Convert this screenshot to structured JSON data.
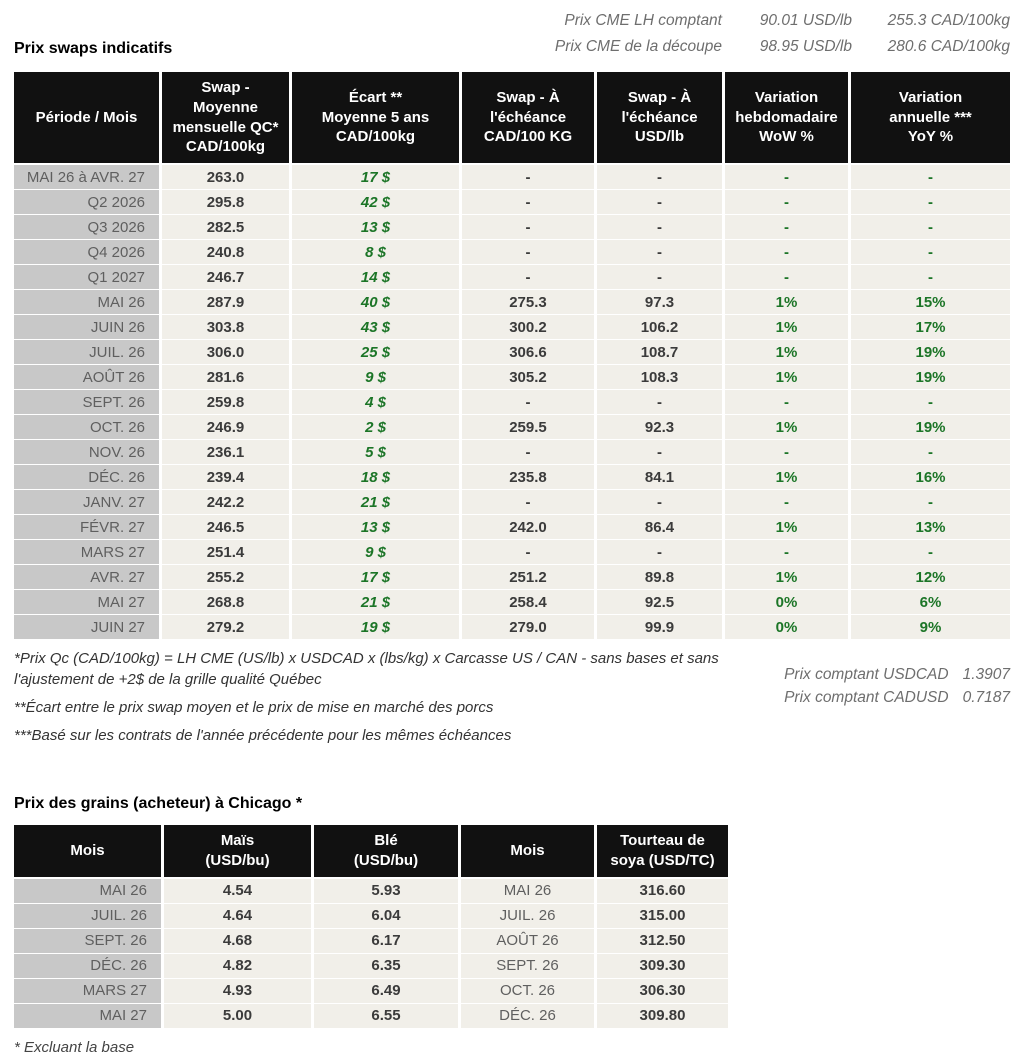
{
  "colors": {
    "green": "#1c7527",
    "header_bg": "#111111",
    "row_bg": "#f1efe9",
    "period_bg": "#c8c8c8",
    "period_text": "#5f5f5f",
    "value_text": "#3b3b3b",
    "muted_text": "#6e6e6e"
  },
  "topbar": {
    "title": "Prix swaps indicatifs",
    "spot_lines": [
      {
        "label": "Prix CME LH comptant",
        "usd": "90.01 USD/lb",
        "cad": "255.3 CAD/100kg"
      },
      {
        "label": "Prix CME de la découpe",
        "usd": "98.95 USD/lb",
        "cad": "280.6 CAD/100kg"
      }
    ]
  },
  "swaps_table": {
    "columns": [
      "Période / Mois",
      "Swap -\nMoyenne\nmensuelle QC*\nCAD/100kg",
      "Écart **\nMoyenne 5 ans\nCAD/100kg",
      "Swap - À\nl'échéance\nCAD/100 KG",
      "Swap - À\nl'échéance\nUSD/lb",
      "Variation\nhebdomadaire\nWoW %",
      "Variation\nannuelle ***\nYoY %"
    ],
    "rows": [
      [
        "MAI 26 à  AVR. 27",
        "263.0",
        "17 $",
        "-",
        "-",
        "-",
        "-"
      ],
      [
        "Q2 2026",
        "295.8",
        "42 $",
        "-",
        "-",
        "-",
        "-"
      ],
      [
        "Q3 2026",
        "282.5",
        "13 $",
        "-",
        "-",
        "-",
        "-"
      ],
      [
        "Q4 2026",
        "240.8",
        "8 $",
        "-",
        "-",
        "-",
        "-"
      ],
      [
        "Q1 2027",
        "246.7",
        "14 $",
        "-",
        "-",
        "-",
        "-"
      ],
      [
        "MAI 26",
        "287.9",
        "40 $",
        "275.3",
        "97.3",
        "1%",
        "15%"
      ],
      [
        "JUIN 26",
        "303.8",
        "43 $",
        "300.2",
        "106.2",
        "1%",
        "17%"
      ],
      [
        "JUIL. 26",
        "306.0",
        "25 $",
        "306.6",
        "108.7",
        "1%",
        "19%"
      ],
      [
        "AOÛT 26",
        "281.6",
        "9 $",
        "305.2",
        "108.3",
        "1%",
        "19%"
      ],
      [
        "SEPT. 26",
        "259.8",
        "4 $",
        "-",
        "-",
        "-",
        "-"
      ],
      [
        "OCT. 26",
        "246.9",
        "2 $",
        "259.5",
        "92.3",
        "1%",
        "19%"
      ],
      [
        "NOV. 26",
        "236.1",
        "5 $",
        "-",
        "-",
        "-",
        "-"
      ],
      [
        "DÉC. 26",
        "239.4",
        "18 $",
        "235.8",
        "84.1",
        "1%",
        "16%"
      ],
      [
        "JANV. 27",
        "242.2",
        "21 $",
        "-",
        "-",
        "-",
        "-"
      ],
      [
        "FÉVR. 27",
        "246.5",
        "13 $",
        "242.0",
        "86.4",
        "1%",
        "13%"
      ],
      [
        "MARS 27",
        "251.4",
        "9 $",
        "-",
        "-",
        "-",
        "-"
      ],
      [
        "AVR. 27",
        "255.2",
        "17 $",
        "251.2",
        "89.8",
        "1%",
        "12%"
      ],
      [
        "MAI 27",
        "268.8",
        "21 $",
        "258.4",
        "92.5",
        "0%",
        "6%"
      ],
      [
        "JUIN 27",
        "279.2",
        "19 $",
        "279.0",
        "99.9",
        "0%",
        "9%"
      ]
    ]
  },
  "footnotes": {
    "fn1": "*Prix Qc (CAD/100kg) = LH CME (US/lb) x USDCAD x (lbs/kg) x Carcasse US / CAN - sans bases et sans l'ajustement de +2$ de la grille qualité Québec",
    "fn2": "**Écart entre le prix swap moyen et le prix de mise en marché des porcs",
    "fn3": "***Basé sur les contrats de l'année précédente pour les mêmes échéances",
    "spot_fx": [
      {
        "label": "Prix comptant USDCAD",
        "value": "1.3907"
      },
      {
        "label": "Prix comptant CADUSD",
        "value": "0.7187"
      }
    ]
  },
  "grains": {
    "title": "Prix des grains (acheteur) à Chicago *",
    "columns": [
      "Mois",
      "Maïs\n(USD/bu)",
      "Blé\n(USD/bu)",
      "Mois",
      "Tourteau de\nsoya (USD/TC)"
    ],
    "rows": [
      [
        "MAI 26",
        "4.54",
        "5.93",
        "MAI 26",
        "316.60"
      ],
      [
        "JUIL. 26",
        "4.64",
        "6.04",
        "JUIL. 26",
        "315.00"
      ],
      [
        "SEPT. 26",
        "4.68",
        "6.17",
        "AOÛT 26",
        "312.50"
      ],
      [
        "DÉC. 26",
        "4.82",
        "6.35",
        "SEPT. 26",
        "309.30"
      ],
      [
        "MARS 27",
        "4.93",
        "6.49",
        "OCT. 26",
        "306.30"
      ],
      [
        "MAI 27",
        "5.00",
        "6.55",
        "DÉC. 26",
        "309.80"
      ]
    ],
    "footnote": "* Excluant la base"
  }
}
